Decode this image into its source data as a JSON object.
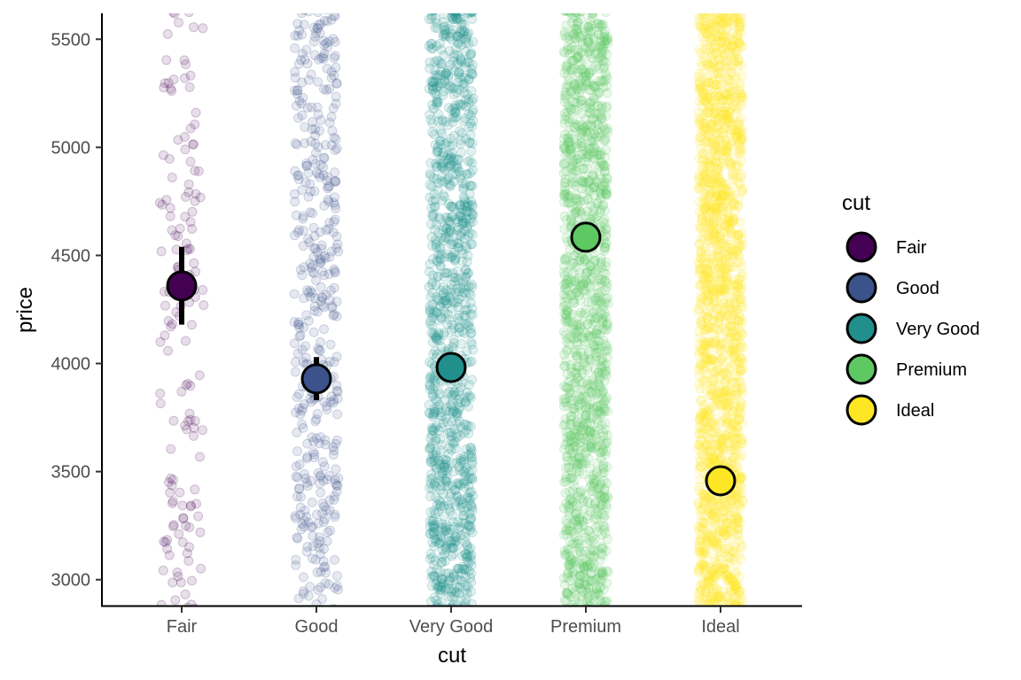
{
  "chart_data": {
    "type": "scatter",
    "xlabel": "cut",
    "ylabel": "price",
    "categories": [
      "Fair",
      "Good",
      "Very Good",
      "Premium",
      "Ideal"
    ],
    "ylim": [
      2880,
      5620
    ],
    "yticks": [
      3000,
      3500,
      4000,
      4500,
      5000,
      5500
    ],
    "grid": false,
    "legend": {
      "title": "cut",
      "position": "right",
      "entries": [
        "Fair",
        "Good",
        "Very Good",
        "Premium",
        "Ideal"
      ]
    },
    "colors": [
      "#440154",
      "#3b528b",
      "#21908c",
      "#5ec962",
      "#fde725"
    ],
    "summary": {
      "statistic": "mean",
      "values": [
        4358.8,
        3928.9,
        3981.8,
        4584.3,
        3457.5
      ],
      "error_low": [
        4180,
        3830,
        3940,
        4550,
        3430
      ],
      "error_high": [
        4540,
        4030,
        4020,
        4620,
        3490
      ]
    },
    "raw_points": {
      "description_style": "jittered semi-transparent points spanning the visible y-range",
      "relative_density": [
        0.35,
        1.0,
        2.6,
        3.2,
        4.0
      ]
    }
  }
}
